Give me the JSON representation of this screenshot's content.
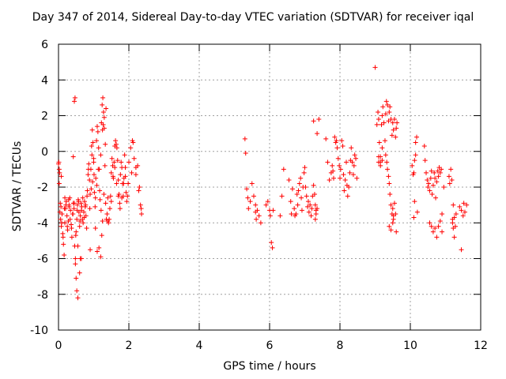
{
  "chart_data": {
    "type": "scatter",
    "title": "Day 347 of 2014, Sidereal Day-to-day VTEC variation (SDTVAR) for receiver iqal",
    "xlabel": "GPS time / hours",
    "ylabel": "SDTVAR / TECUs",
    "xlim": [
      0,
      12
    ],
    "ylim": [
      -10,
      6
    ],
    "xticks": [
      0,
      2,
      4,
      6,
      8,
      10,
      12
    ],
    "yticks": [
      -10,
      -8,
      -6,
      -4,
      -2,
      0,
      2,
      4,
      6
    ],
    "grid": true,
    "marker": "+",
    "color": "#ff0000",
    "series": [
      {
        "name": "SDTVAR",
        "x": [
          0.0,
          0.02,
          0.04,
          0.06,
          0.08,
          0.1,
          0.12,
          0.14,
          0.16,
          0.18,
          0.2,
          0.22,
          0.24,
          0.26,
          0.28,
          0.3,
          0.32,
          0.34,
          0.36,
          0.38,
          0.4,
          0.42,
          0.44,
          0.46,
          0.48,
          0.5,
          0.52,
          0.54,
          0.56,
          0.58,
          0.6,
          0.62,
          0.64,
          0.66,
          0.68,
          0.7,
          0.72,
          0.74,
          0.76,
          0.78,
          0.8,
          0.82,
          0.84,
          0.86,
          0.88,
          0.9,
          0.92,
          0.94,
          0.96,
          0.98,
          1.0,
          1.02,
          1.04,
          1.06,
          1.08,
          1.1,
          1.12,
          1.14,
          1.16,
          1.18,
          1.2,
          1.22,
          1.24,
          1.26,
          1.28,
          1.3,
          1.32,
          1.34,
          1.36,
          1.38,
          1.4,
          1.42,
          1.44,
          1.46,
          1.48,
          1.5,
          1.52,
          1.54,
          1.56,
          1.58,
          1.6,
          1.62,
          1.64,
          1.66,
          1.68,
          1.7,
          1.72,
          1.74,
          1.76,
          1.78,
          1.8,
          1.82,
          1.84,
          1.86,
          1.88,
          1.9,
          1.92,
          1.94,
          1.96,
          1.98,
          2.0,
          2.05,
          2.1,
          2.15,
          2.2,
          2.25,
          2.3,
          2.35,
          0.01,
          0.03,
          0.05,
          0.07,
          0.09,
          0.13,
          0.17,
          0.21,
          0.25,
          0.29,
          0.33,
          0.37,
          0.41,
          0.45,
          0.49,
          0.53,
          0.57,
          0.61,
          0.65,
          0.69,
          0.73,
          0.77,
          0.81,
          0.85,
          0.89,
          0.93,
          0.97,
          1.01,
          1.05,
          1.09,
          1.13,
          1.17,
          1.21,
          1.25,
          1.29,
          1.33,
          0.02,
          0.08,
          0.18,
          0.3,
          0.42,
          0.48,
          0.5,
          0.52,
          0.55,
          0.6,
          0.65,
          1.1,
          1.15,
          1.2,
          1.23,
          1.25,
          1.27,
          1.3,
          1.35,
          0.45,
          0.47,
          0.55,
          0.62,
          0.9,
          0.95,
          1.0,
          1.05,
          1.4,
          1.5,
          1.55,
          1.6,
          1.65,
          1.7,
          1.75,
          1.8,
          1.85,
          1.9,
          2.08,
          2.12,
          2.2,
          2.28,
          2.33,
          2.36,
          5.3,
          5.32,
          5.35,
          5.38,
          5.4,
          5.45,
          5.5,
          5.55,
          5.6,
          5.65,
          5.7,
          5.75,
          5.6,
          5.62,
          5.9,
          5.95,
          6.0,
          6.02,
          6.05,
          6.08,
          6.1,
          6.3,
          6.35,
          6.4,
          6.55,
          6.6,
          6.62,
          6.65,
          6.7,
          6.72,
          6.75,
          6.78,
          6.8,
          6.82,
          6.85,
          6.88,
          6.9,
          6.92,
          6.95,
          6.98,
          7.0,
          7.02,
          7.05,
          7.08,
          7.1,
          7.12,
          7.15,
          7.18,
          7.2,
          7.22,
          7.25,
          7.28,
          7.3,
          7.32,
          7.35,
          7.3,
          7.32,
          7.35,
          7.25,
          7.4,
          7.6,
          7.65,
          7.7,
          7.75,
          7.78,
          7.8,
          7.82,
          7.85,
          7.88,
          7.9,
          7.92,
          7.95,
          7.98,
          8.0,
          8.02,
          8.05,
          8.08,
          8.1,
          8.12,
          8.15,
          8.18,
          8.2,
          8.22,
          8.25,
          8.28,
          8.3,
          8.32,
          8.35,
          8.38,
          8.4,
          8.42,
          8.45,
          8.48,
          9.05,
          9.08,
          9.1,
          9.12,
          9.15,
          9.18,
          9.2,
          9.22,
          9.25,
          9.28,
          9.3,
          9.32,
          9.35,
          9.38,
          9.4,
          9.42,
          9.45,
          9.48,
          9.5,
          9.52,
          9.55,
          9.58,
          9.6,
          9.62,
          9.1,
          9.15,
          9.2,
          9.3,
          9.33,
          9.35,
          9.38,
          9.4,
          9.42,
          9.45,
          9.48,
          9.5,
          9.52,
          9.55,
          9.58,
          9.4,
          9.45,
          9.5,
          9.52,
          9.6,
          9.1,
          9.15,
          9.2,
          10.05,
          10.08,
          10.1,
          10.12,
          10.15,
          10.18,
          10.2,
          10.1,
          10.12,
          10.15,
          10.4,
          10.42,
          10.45,
          10.48,
          10.5,
          10.52,
          10.55,
          10.58,
          10.6,
          10.62,
          10.65,
          10.68,
          10.7,
          10.72,
          10.75,
          10.78,
          10.8,
          10.82,
          10.85,
          10.88,
          10.9,
          10.55,
          10.6,
          10.65,
          10.7,
          10.75,
          10.8,
          10.85,
          10.9,
          10.95,
          11.1,
          11.12,
          11.15,
          11.18,
          11.2,
          11.22,
          11.25,
          11.28,
          11.3,
          11.2,
          11.22,
          11.25,
          11.4,
          11.45,
          11.5,
          11.52,
          11.55,
          11.6,
          11.45,
          9.0
        ],
        "y": [
          -0.7,
          -1.8,
          -3.4,
          -3.8,
          -4.2,
          -3.5,
          -4.6,
          -5.2,
          -5.8,
          -4.0,
          -3.2,
          -2.8,
          -3.6,
          -4.4,
          -3.9,
          -3.0,
          -2.6,
          -3.3,
          -4.1,
          -4.8,
          -3.5,
          -2.9,
          -3.2,
          -5.3,
          -6.0,
          -4.5,
          -3.8,
          -3.0,
          -2.7,
          -3.4,
          -4.2,
          -3.6,
          -2.9,
          -3.1,
          -3.8,
          -4.0,
          -3.4,
          -2.8,
          -3.1,
          -3.6,
          -4.3,
          -2.2,
          -1.3,
          -0.7,
          -1.6,
          -2.4,
          -1.0,
          0.3,
          1.2,
          0.5,
          -0.6,
          -2.3,
          -3.1,
          -1.5,
          0.6,
          1.4,
          1.1,
          0.2,
          -1.0,
          -2.7,
          -0.2,
          1.6,
          2.6,
          3.0,
          2.2,
          1.3,
          -0.8,
          -2.9,
          -3.8,
          -3.5,
          -3.9,
          -4.0,
          -3.8,
          -3.2,
          -2.5,
          -1.2,
          -0.4,
          -0.8,
          -1.5,
          -0.6,
          0.3,
          0.6,
          0.4,
          0.2,
          -0.5,
          -1.6,
          -2.4,
          -2.9,
          -1.3,
          -0.6,
          -0.9,
          -1.8,
          -2.5,
          -1.5,
          -0.2,
          -1.4,
          -2.3,
          -2.8,
          -2.5,
          -1.8,
          -0.6,
          0.2,
          0.6,
          -0.4,
          -1.3,
          -0.8,
          -2.0,
          -3.2,
          -0.6,
          -1.2,
          -2.9,
          -3.1,
          -4.0,
          -4.8,
          -3.2,
          -3.0,
          -4.2,
          -2.7,
          -3.8,
          -4.3,
          -3.5,
          -2.9,
          -4.7,
          -3.3,
          -2.8,
          -3.9,
          -3.3,
          -2.6,
          -3.7,
          -3.0,
          -2.5,
          -1.0,
          -3.2,
          -2.1,
          -1.7,
          -1.3,
          -2.6,
          -1.9,
          -1.0,
          -2.2,
          -3.3,
          -3.9,
          -2.4,
          0.4,
          -1.0,
          -1.4,
          -2.6,
          -3.1,
          -0.3,
          -6.3,
          -7.1,
          -7.8,
          -8.2,
          -6.8,
          -6.0,
          -5.6,
          -5.4,
          -5.9,
          -4.7,
          1.2,
          1.5,
          1.9,
          2.4,
          2.8,
          3.0,
          -5.3,
          -6.0,
          -5.5,
          -0.2,
          -0.4,
          -4.3,
          -2.6,
          -2.8,
          -1.4,
          -0.9,
          -1.8,
          -2.5,
          -3.2,
          -2.6,
          -1.8,
          -0.9,
          -1.2,
          0.5,
          -0.9,
          -2.2,
          -3.0,
          -3.5,
          0.7,
          -0.1,
          -2.1,
          -2.6,
          -3.2,
          -2.8,
          -1.8,
          -2.5,
          -3.0,
          -3.3,
          -3.6,
          -4.0,
          -3.4,
          -3.8,
          -3.0,
          -2.8,
          -3.3,
          -3.6,
          -5.1,
          -5.4,
          -3.3,
          -3.6,
          -2.5,
          -1.0,
          -1.6,
          -2.8,
          -3.5,
          -2.1,
          -3.2,
          -3.6,
          -3.5,
          -2.4,
          -3.0,
          -2.2,
          -1.8,
          -1.5,
          -2.6,
          -3.3,
          -2.0,
          -1.2,
          -0.9,
          -2.0,
          -2.5,
          -3.1,
          -2.8,
          -3.4,
          -3.0,
          -3.6,
          -3.2,
          -2.5,
          -1.9,
          -2.4,
          -3.0,
          -3.5,
          -3.2,
          -3.8,
          -3.3,
          1.0,
          1.7,
          1.8,
          0.7,
          -0.6,
          -1.6,
          -1.2,
          -0.8,
          -1.1,
          -1.5,
          0.8,
          0.5,
          0.6,
          0.2,
          -0.4,
          -0.8,
          -1.5,
          -1.0,
          0.6,
          0.3,
          -1.3,
          -2.2,
          -1.6,
          -0.6,
          -1.9,
          -2.5,
          -2.0,
          -1.2,
          -0.5,
          0.2,
          -0.6,
          -1.3,
          -0.8,
          -0.2,
          -0.4,
          -1.5,
          1.5,
          2.2,
          1.8,
          0.5,
          -0.6,
          1.5,
          2.0,
          2.5,
          1.6,
          0.6,
          2.1,
          2.8,
          2.6,
          1.7,
          2.2,
          2.5,
          1.8,
          0.9,
          1.6,
          1.2,
          1.8,
          0.8,
          1.3,
          1.6,
          -0.3,
          -0.8,
          -0.5,
          -0.2,
          -0.6,
          -1.0,
          -1.4,
          -1.8,
          -2.4,
          -3.0,
          -3.5,
          -3.2,
          -3.8,
          -2.9,
          -3.5,
          -4.2,
          -4.4,
          -4.0,
          -3.6,
          -4.5,
          -0.6,
          -0.3,
          0.2,
          -0.8,
          -1.3,
          -1.2,
          -0.5,
          0.5,
          0.8,
          -3.4,
          -3.7,
          -2.8,
          -0.2,
          0.3,
          -0.5,
          -1.2,
          -1.6,
          -2.0,
          -1.8,
          -2.2,
          -1.5,
          -1.1,
          -2.4,
          -1.9,
          -1.2,
          -1.5,
          -2.6,
          -1.7,
          -1.1,
          -1.4,
          -0.9,
          -1.2,
          -1.0,
          -3.5,
          -4.0,
          -4.2,
          -4.5,
          -4.3,
          -4.8,
          -4.2,
          -3.9,
          -4.5,
          -2.0,
          -1.4,
          -1.8,
          -1.0,
          -1.6,
          -3.8,
          -4.3,
          -4.8,
          -4.2,
          -3.5,
          -4.0,
          -3.0,
          -3.7,
          -3.1,
          -3.3,
          -3.6,
          -2.9,
          -3.4,
          -3.0,
          -5.5,
          4.7
        ]
      }
    ]
  }
}
